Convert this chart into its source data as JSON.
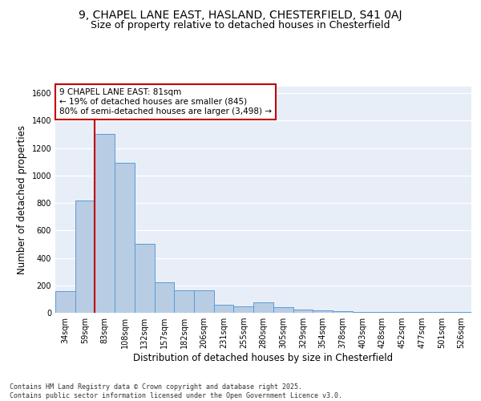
{
  "title_line1": "9, CHAPEL LANE EAST, HASLAND, CHESTERFIELD, S41 0AJ",
  "title_line2": "Size of property relative to detached houses in Chesterfield",
  "xlabel": "Distribution of detached houses by size in Chesterfield",
  "ylabel": "Number of detached properties",
  "categories": [
    "34sqm",
    "59sqm",
    "83sqm",
    "108sqm",
    "132sqm",
    "157sqm",
    "182sqm",
    "206sqm",
    "231sqm",
    "255sqm",
    "280sqm",
    "305sqm",
    "329sqm",
    "354sqm",
    "378sqm",
    "403sqm",
    "428sqm",
    "452sqm",
    "477sqm",
    "501sqm",
    "526sqm"
  ],
  "values": [
    160,
    820,
    1300,
    1090,
    500,
    220,
    165,
    165,
    60,
    45,
    75,
    40,
    25,
    18,
    12,
    8,
    5,
    4,
    4,
    4,
    4
  ],
  "bar_color": "#b8cce4",
  "bar_edge_color": "#5b9bd5",
  "vline_x_index": 2,
  "vline_color": "#c00000",
  "annotation_text": "9 CHAPEL LANE EAST: 81sqm\n← 19% of detached houses are smaller (845)\n80% of semi-detached houses are larger (3,498) →",
  "annotation_box_color": "#c00000",
  "ylim": [
    0,
    1650
  ],
  "yticks": [
    0,
    200,
    400,
    600,
    800,
    1000,
    1200,
    1400,
    1600
  ],
  "background_color": "#e8eef7",
  "footer_text": "Contains HM Land Registry data © Crown copyright and database right 2025.\nContains public sector information licensed under the Open Government Licence v3.0.",
  "title_fontsize": 10,
  "subtitle_fontsize": 9,
  "axis_label_fontsize": 8.5,
  "tick_fontsize": 7,
  "annotation_fontsize": 7.5
}
